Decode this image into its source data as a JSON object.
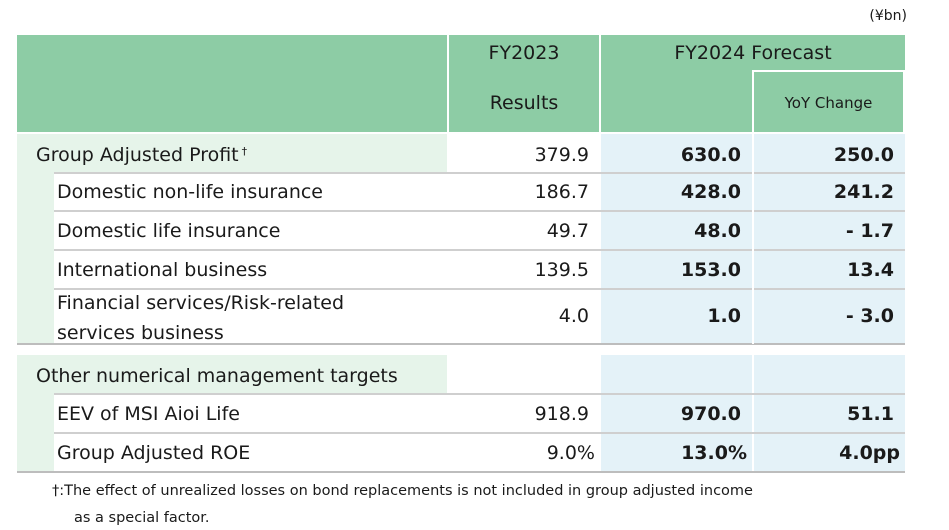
{
  "unit": "(¥bn)",
  "header": {
    "fy2023_line1": "FY2023",
    "fy2023_line2": "Results",
    "forecast": "FY2024 Forecast",
    "yoy": "YoY Change"
  },
  "section1": {
    "label": "Group Adjusted Profit",
    "mark": "†",
    "result": "379.9",
    "forecast": "630.0",
    "yoy": "250.0",
    "rows": [
      {
        "label": "Domestic non-life insurance",
        "result": "186.7",
        "forecast": "428.0",
        "yoy": "241.2"
      },
      {
        "label": "Domestic life insurance",
        "result": "49.7",
        "forecast": "48.0",
        "yoy": "- 1.7"
      },
      {
        "label": "International business",
        "result": "139.5",
        "forecast": "153.0",
        "yoy": "13.4"
      },
      {
        "label_line1": "Financial services/Risk-related",
        "label_line2": "services business",
        "result": "4.0",
        "forecast": "1.0",
        "yoy": "- 3.0"
      }
    ]
  },
  "section2": {
    "label": "Other numerical management targets",
    "rows": [
      {
        "label": "EEV of MSI Aioi Life",
        "result": "918.9",
        "forecast": "970.0",
        "yoy": "51.1"
      },
      {
        "label": "Group Adjusted ROE",
        "result": "9.0%",
        "forecast": "13.0%",
        "yoy": "4.0pp"
      }
    ]
  },
  "footnote": {
    "mark": "†",
    "line1": ":The effect of unrealized losses on bond replacements is not included in group adjusted income",
    "line2": "as a special factor."
  }
}
